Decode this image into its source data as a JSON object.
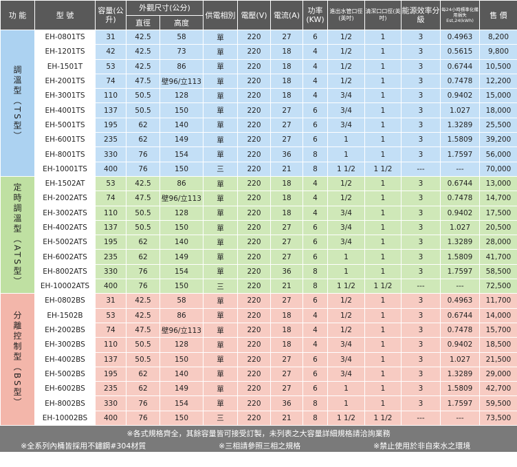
{
  "header": {
    "function": "功 能",
    "model": "型 號",
    "capacity": "容量(公升)",
    "size": "外觀尺寸(公分)",
    "diameter": "直徑",
    "height": "高度",
    "phase": "供電相別",
    "voltage": "電壓(V)",
    "current": "電流(A)",
    "power": "功率(KW)",
    "pipe": "進出水管口徑(英吋)",
    "clean": "清潔口口徑(英吋)",
    "efficiency": "能源效率分級",
    "loss": "每24小時標準化備用損失Est,24(kWh)",
    "price": "售 價"
  },
  "groups": [
    {
      "label": "調溫型（TS型）",
      "rows": [
        [
          "EH-0801TS",
          "31",
          "42.5",
          "58",
          "單",
          "220",
          "27",
          "6",
          "1/2",
          "1",
          "3",
          "0.4963",
          "8,200"
        ],
        [
          "EH-1201TS",
          "42",
          "42.5",
          "73",
          "單",
          "220",
          "18",
          "4",
          "1/2",
          "1",
          "3",
          "0.5615",
          "9,800"
        ],
        [
          "EH-1501T",
          "53",
          "42.5",
          "86",
          "單",
          "220",
          "18",
          "4",
          "1/2",
          "1",
          "3",
          "0.6744",
          "10,500"
        ],
        [
          "EH-2001TS",
          "74",
          "47.5",
          "壁96/立113",
          "單",
          "220",
          "18",
          "4",
          "1/2",
          "1",
          "3",
          "0.7478",
          "12,200"
        ],
        [
          "EH-3001TS",
          "110",
          "50.5",
          "128",
          "單",
          "220",
          "18",
          "4",
          "3/4",
          "1",
          "3",
          "0.9402",
          "15,000"
        ],
        [
          "EH-4001TS",
          "137",
          "50.5",
          "150",
          "單",
          "220",
          "27",
          "6",
          "3/4",
          "1",
          "3",
          "1.027",
          "18,000"
        ],
        [
          "EH-5001TS",
          "195",
          "62",
          "140",
          "單",
          "220",
          "27",
          "6",
          "3/4",
          "1",
          "3",
          "1.3289",
          "25,500"
        ],
        [
          "EH-6001TS",
          "235",
          "62",
          "149",
          "單",
          "220",
          "27",
          "6",
          "1",
          "1",
          "3",
          "1.5809",
          "39,200"
        ],
        [
          "EH-8001TS",
          "330",
          "76",
          "154",
          "單",
          "220",
          "36",
          "8",
          "1",
          "1",
          "3",
          "1.7597",
          "56,000"
        ],
        [
          "EH-10001TS",
          "400",
          "76",
          "150",
          "三",
          "220",
          "21",
          "8",
          "1 1/2",
          "1 1/2",
          "---",
          "---",
          "70,000"
        ]
      ]
    },
    {
      "label": "定時調溫型（ATS型）",
      "rows": [
        [
          "EH-1502AT",
          "53",
          "42.5",
          "86",
          "單",
          "220",
          "18",
          "4",
          "1/2",
          "1",
          "3",
          "0.6744",
          "13,000"
        ],
        [
          "EH-2002ATS",
          "74",
          "47.5",
          "壁96/立113",
          "單",
          "220",
          "18",
          "4",
          "1/2",
          "1",
          "3",
          "0.7478",
          "14,700"
        ],
        [
          "EH-3002ATS",
          "110",
          "50.5",
          "128",
          "單",
          "220",
          "18",
          "4",
          "3/4",
          "1",
          "3",
          "0.9402",
          "17,500"
        ],
        [
          "EH-4002ATS",
          "137",
          "50.5",
          "150",
          "單",
          "220",
          "27",
          "6",
          "3/4",
          "1",
          "3",
          "1.027",
          "20,500"
        ],
        [
          "EH-5002ATS",
          "195",
          "62",
          "140",
          "單",
          "220",
          "27",
          "6",
          "3/4",
          "1",
          "3",
          "1.3289",
          "28,000"
        ],
        [
          "EH-6002ATS",
          "235",
          "62",
          "149",
          "單",
          "220",
          "27",
          "6",
          "1",
          "1",
          "3",
          "1.5809",
          "41,700"
        ],
        [
          "EH-8002ATS",
          "330",
          "76",
          "154",
          "單",
          "220",
          "36",
          "8",
          "1",
          "1",
          "3",
          "1.7597",
          "58,500"
        ],
        [
          "EH-10002ATS",
          "400",
          "76",
          "150",
          "三",
          "220",
          "21",
          "8",
          "1 1/2",
          "1 1/2",
          "---",
          "---",
          "72,500"
        ]
      ]
    },
    {
      "label": "分離控制型（BS型）",
      "rows": [
        [
          "EH-0802BS",
          "31",
          "42.5",
          "58",
          "單",
          "220",
          "27",
          "6",
          "1/2",
          "1",
          "3",
          "0.4963",
          "11,700"
        ],
        [
          "EH-1502B",
          "53",
          "42.5",
          "86",
          "單",
          "220",
          "18",
          "4",
          "1/2",
          "1",
          "3",
          "0.6744",
          "14,000"
        ],
        [
          "EH-2002BS",
          "74",
          "47.5",
          "壁96/立113",
          "單",
          "220",
          "18",
          "4",
          "1/2",
          "1",
          "3",
          "0.7478",
          "15,700"
        ],
        [
          "EH-3002BS",
          "110",
          "50.5",
          "128",
          "單",
          "220",
          "18",
          "4",
          "3/4",
          "1",
          "3",
          "0.9402",
          "18,500"
        ],
        [
          "EH-4002BS",
          "137",
          "50.5",
          "150",
          "單",
          "220",
          "27",
          "6",
          "3/4",
          "1",
          "3",
          "1.027",
          "21,500"
        ],
        [
          "EH-5002BS",
          "195",
          "62",
          "140",
          "單",
          "220",
          "27",
          "6",
          "3/4",
          "1",
          "3",
          "1.3289",
          "29,000"
        ],
        [
          "EH-6002BS",
          "235",
          "62",
          "149",
          "單",
          "220",
          "27",
          "6",
          "1",
          "1",
          "3",
          "1.5809",
          "42,700"
        ],
        [
          "EH-8002BS",
          "330",
          "76",
          "154",
          "單",
          "220",
          "36",
          "8",
          "1",
          "1",
          "3",
          "1.7597",
          "59,500"
        ],
        [
          "EH-10002BS",
          "400",
          "76",
          "150",
          "三",
          "220",
          "21",
          "8",
          "1 1/2",
          "1 1/2",
          "---",
          "---",
          "73,500"
        ]
      ]
    }
  ],
  "footer": {
    "line1": "※各式規格齊全，其餘容量皆可接受訂製，未列表之大容量詳細規格請洽詢業務",
    "notes": [
      "※全系列內桶皆採用不鏽鋼#304材質",
      "※三相請參照三相之規格",
      "※禁止使用於非自來水之環境"
    ]
  }
}
